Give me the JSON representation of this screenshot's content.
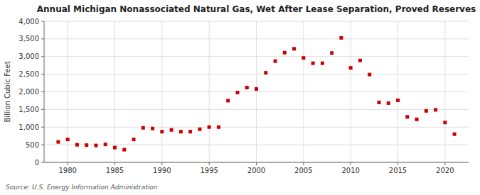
{
  "chart_data": {
    "type": "scatter",
    "title": "Annual Michigan Nonassociated Natural Gas, Wet After Lease Separation, Proved Reserves",
    "ylabel": "Billion Cubic Feet",
    "annotations": [
      "Source: U.S. Energy Information Administration"
    ],
    "color": "#cc0000",
    "marker": "square",
    "grid": true,
    "x": [
      1979,
      1980,
      1981,
      1982,
      1983,
      1984,
      1985,
      1986,
      1987,
      1988,
      1989,
      1990,
      1991,
      1992,
      1993,
      1994,
      1995,
      1996,
      1997,
      1998,
      1999,
      2000,
      2001,
      2002,
      2003,
      2004,
      2005,
      2006,
      2007,
      2008,
      2009,
      2010,
      2011,
      2012,
      2013,
      2014,
      2015,
      2016,
      2017,
      2018,
      2019,
      2020,
      2021
    ],
    "values": [
      580,
      650,
      500,
      490,
      480,
      510,
      420,
      360,
      650,
      980,
      960,
      870,
      920,
      870,
      870,
      940,
      1000,
      1000,
      1750,
      1980,
      2120,
      2080,
      2540,
      2870,
      3110,
      3220,
      2960,
      2810,
      2810,
      3100,
      3530,
      2680,
      2890,
      2490,
      1700,
      1680,
      1760,
      1290,
      1220,
      1460,
      1490,
      1130,
      800
    ],
    "xlim": [
      1977.5,
      2022.5
    ],
    "xticks": [
      1980,
      1985,
      1990,
      1995,
      2000,
      2005,
      2010,
      2015,
      2020
    ],
    "ylim": [
      0,
      4000
    ],
    "yticks": [
      0,
      500,
      {
        "value": 1000,
        "label": "1,000"
      },
      {
        "value": 1500,
        "label": "1,500"
      },
      {
        "value": 2000,
        "label": "2,000"
      },
      {
        "value": 2500,
        "label": "2,500"
      },
      {
        "value": 3000,
        "label": "3,000"
      },
      {
        "value": 3500,
        "label": "3,500"
      },
      {
        "value": 4000,
        "label": "4,000"
      }
    ]
  }
}
